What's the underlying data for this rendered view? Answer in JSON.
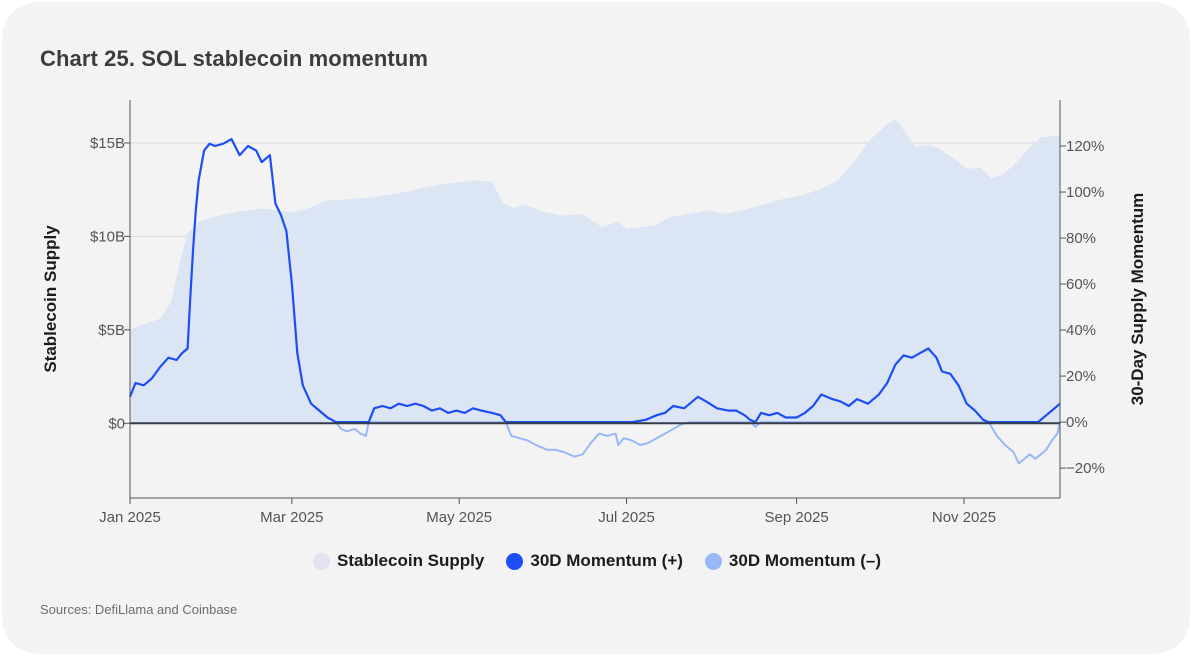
{
  "title": "Chart 25.  SOL stablecoin momentum",
  "source": "Sources: DefiLlama and Coinbase",
  "legend": {
    "supply": "Stablecoin Supply",
    "pos": "30D Momentum (+)",
    "neg": "30D Momentum (–)"
  },
  "colors": {
    "supply_fill": "#dce5f4",
    "supply_swatch": "#e3e3f3",
    "momentum_pos": "#1c4ef5",
    "momentum_neg": "#99b8f7",
    "zero_line": "#353b48"
  },
  "chart_data": {
    "type": "area",
    "title": "Chart 25.  SOL stablecoin momentum",
    "x_type": "date",
    "x_range": [
      "2025-01-01",
      "2025-12-06"
    ],
    "x_ticks": [
      {
        "date": "2025-01-01",
        "label": "Jan 2025"
      },
      {
        "date": "2025-03-01",
        "label": "Mar 2025"
      },
      {
        "date": "2025-05-01",
        "label": "May 2025"
      },
      {
        "date": "2025-07-01",
        "label": "Jul 2025"
      },
      {
        "date": "2025-09-01",
        "label": "Sep 2025"
      },
      {
        "date": "2025-11-01",
        "label": "Nov 2025"
      }
    ],
    "left_axis": {
      "label": "Stablecoin Supply",
      "range": [
        -4,
        17.3
      ],
      "ticks": [
        {
          "v": 0,
          "label": "$0"
        },
        {
          "v": 5,
          "label": "$5B"
        },
        {
          "v": 10,
          "label": "$10B"
        },
        {
          "v": 15,
          "label": "$15B"
        }
      ]
    },
    "right_axis": {
      "label": "30-Day Supply Momentum",
      "range": [
        -33,
        140
      ],
      "ticks": [
        {
          "v": -20,
          "label": "−20%"
        },
        {
          "v": 0,
          "label": "0%"
        },
        {
          "v": 20,
          "label": "20%"
        },
        {
          "v": 40,
          "label": "40%"
        },
        {
          "v": 60,
          "label": "60%"
        },
        {
          "v": 80,
          "label": "80%"
        },
        {
          "v": 100,
          "label": "100%"
        },
        {
          "v": 120,
          "label": "120%"
        }
      ]
    },
    "grid": "horizontal",
    "legend_position": "bottom",
    "series": [
      {
        "name": "Stablecoin Supply",
        "unit": "$B",
        "axis": "left",
        "points": [
          [
            "2025-01-01",
            5.0
          ],
          [
            "2025-01-06",
            5.3
          ],
          [
            "2025-01-12",
            5.6
          ],
          [
            "2025-01-16",
            6.5
          ],
          [
            "2025-01-19",
            8.5
          ],
          [
            "2025-01-22",
            10.2
          ],
          [
            "2025-01-26",
            10.8
          ],
          [
            "2025-02-02",
            11.1
          ],
          [
            "2025-02-09",
            11.3
          ],
          [
            "2025-02-18",
            11.5
          ],
          [
            "2025-03-01",
            11.3
          ],
          [
            "2025-03-07",
            11.5
          ],
          [
            "2025-03-13",
            11.9
          ],
          [
            "2025-03-22",
            12.0
          ],
          [
            "2025-03-31",
            12.1
          ],
          [
            "2025-04-09",
            12.3
          ],
          [
            "2025-04-18",
            12.6
          ],
          [
            "2025-04-25",
            12.8
          ],
          [
            "2025-05-01",
            12.9
          ],
          [
            "2025-05-08",
            13.0
          ],
          [
            "2025-05-13",
            12.9
          ],
          [
            "2025-05-17",
            11.8
          ],
          [
            "2025-05-21",
            11.5
          ],
          [
            "2025-05-25",
            11.7
          ],
          [
            "2025-06-01",
            11.3
          ],
          [
            "2025-06-08",
            11.1
          ],
          [
            "2025-06-15",
            11.2
          ],
          [
            "2025-06-22",
            10.5
          ],
          [
            "2025-06-28",
            10.8
          ],
          [
            "2025-07-01",
            10.4
          ],
          [
            "2025-07-06",
            10.5
          ],
          [
            "2025-07-12",
            10.6
          ],
          [
            "2025-07-16",
            11.0
          ],
          [
            "2025-07-23",
            11.2
          ],
          [
            "2025-07-31",
            11.4
          ],
          [
            "2025-08-06",
            11.2
          ],
          [
            "2025-08-12",
            11.4
          ],
          [
            "2025-08-20",
            11.7
          ],
          [
            "2025-08-27",
            12.0
          ],
          [
            "2025-09-03",
            12.2
          ],
          [
            "2025-09-09",
            12.5
          ],
          [
            "2025-09-16",
            13.0
          ],
          [
            "2025-09-22",
            14.0
          ],
          [
            "2025-09-28",
            15.2
          ],
          [
            "2025-10-04",
            16.0
          ],
          [
            "2025-10-07",
            16.3
          ],
          [
            "2025-10-11",
            15.5
          ],
          [
            "2025-10-14",
            14.8
          ],
          [
            "2025-10-19",
            14.9
          ],
          [
            "2025-10-23",
            14.7
          ],
          [
            "2025-10-28",
            14.2
          ],
          [
            "2025-11-02",
            13.6
          ],
          [
            "2025-11-07",
            13.7
          ],
          [
            "2025-11-11",
            13.1
          ],
          [
            "2025-11-15",
            13.3
          ],
          [
            "2025-11-19",
            13.8
          ],
          [
            "2025-11-24",
            14.6
          ],
          [
            "2025-11-29",
            15.3
          ],
          [
            "2025-12-06",
            15.4
          ]
        ]
      },
      {
        "name": "30D Momentum (+)",
        "unit": "%",
        "axis": "right",
        "points": [
          [
            "2025-01-01",
            11
          ],
          [
            "2025-01-03",
            17
          ],
          [
            "2025-01-06",
            16
          ],
          [
            "2025-01-09",
            19
          ],
          [
            "2025-01-12",
            24
          ],
          [
            "2025-01-15",
            28
          ],
          [
            "2025-01-18",
            27
          ],
          [
            "2025-01-20",
            30
          ],
          [
            "2025-01-22",
            32
          ],
          [
            "2025-01-23",
            55
          ],
          [
            "2025-01-24",
            75
          ],
          [
            "2025-01-25",
            92
          ],
          [
            "2025-01-26",
            105
          ],
          [
            "2025-01-28",
            118
          ],
          [
            "2025-01-30",
            121
          ],
          [
            "2025-02-01",
            120
          ],
          [
            "2025-02-04",
            121
          ],
          [
            "2025-02-07",
            123
          ],
          [
            "2025-02-10",
            116
          ],
          [
            "2025-02-13",
            120
          ],
          [
            "2025-02-16",
            118
          ],
          [
            "2025-02-18",
            113
          ],
          [
            "2025-02-21",
            116
          ],
          [
            "2025-02-23",
            95
          ],
          [
            "2025-02-25",
            90
          ],
          [
            "2025-02-27",
            83
          ],
          [
            "2025-03-01",
            60
          ],
          [
            "2025-03-03",
            30
          ],
          [
            "2025-03-05",
            16
          ],
          [
            "2025-03-08",
            8
          ],
          [
            "2025-03-11",
            5
          ],
          [
            "2025-03-14",
            2
          ],
          [
            "2025-03-17",
            0
          ],
          [
            "2025-03-29",
            0
          ],
          [
            "2025-03-31",
            6
          ],
          [
            "2025-04-03",
            7
          ],
          [
            "2025-04-06",
            6
          ],
          [
            "2025-04-09",
            8
          ],
          [
            "2025-04-12",
            7
          ],
          [
            "2025-04-15",
            8
          ],
          [
            "2025-04-18",
            7
          ],
          [
            "2025-04-21",
            5
          ],
          [
            "2025-04-24",
            6
          ],
          [
            "2025-04-27",
            4
          ],
          [
            "2025-04-30",
            5
          ],
          [
            "2025-05-03",
            4
          ],
          [
            "2025-05-06",
            6
          ],
          [
            "2025-05-09",
            5
          ],
          [
            "2025-05-13",
            4
          ],
          [
            "2025-05-16",
            3
          ],
          [
            "2025-05-18",
            0
          ],
          [
            "2025-06-28",
            0
          ],
          [
            "2025-07-03",
            0
          ],
          [
            "2025-07-08",
            1
          ],
          [
            "2025-07-12",
            3
          ],
          [
            "2025-07-15",
            4
          ],
          [
            "2025-07-18",
            7
          ],
          [
            "2025-07-22",
            6
          ],
          [
            "2025-07-27",
            11
          ],
          [
            "2025-07-30",
            9
          ],
          [
            "2025-08-03",
            6
          ],
          [
            "2025-08-07",
            5
          ],
          [
            "2025-08-10",
            5
          ],
          [
            "2025-08-13",
            3
          ],
          [
            "2025-08-15",
            1
          ],
          [
            "2025-08-17",
            0
          ],
          [
            "2025-08-19",
            4
          ],
          [
            "2025-08-22",
            3
          ],
          [
            "2025-08-25",
            4
          ],
          [
            "2025-08-28",
            2
          ],
          [
            "2025-09-01",
            2
          ],
          [
            "2025-09-04",
            4
          ],
          [
            "2025-09-07",
            7
          ],
          [
            "2025-09-10",
            12
          ],
          [
            "2025-09-14",
            10
          ],
          [
            "2025-09-17",
            9
          ],
          [
            "2025-09-20",
            7
          ],
          [
            "2025-09-23",
            10
          ],
          [
            "2025-09-27",
            8
          ],
          [
            "2025-10-01",
            12
          ],
          [
            "2025-10-04",
            17
          ],
          [
            "2025-10-07",
            25
          ],
          [
            "2025-10-10",
            29
          ],
          [
            "2025-10-13",
            28
          ],
          [
            "2025-10-16",
            30
          ],
          [
            "2025-10-19",
            32
          ],
          [
            "2025-10-22",
            28
          ],
          [
            "2025-10-24",
            22
          ],
          [
            "2025-10-27",
            21
          ],
          [
            "2025-10-30",
            16
          ],
          [
            "2025-11-02",
            8
          ],
          [
            "2025-11-05",
            5
          ],
          [
            "2025-11-08",
            1
          ],
          [
            "2025-11-10",
            0
          ],
          [
            "2025-11-28",
            0
          ],
          [
            "2025-12-01",
            3
          ],
          [
            "2025-12-03",
            5
          ],
          [
            "2025-12-06",
            8
          ]
        ]
      },
      {
        "name": "30D Momentum (–)",
        "unit": "%",
        "axis": "right",
        "points": [
          [
            "2025-03-17",
            0
          ],
          [
            "2025-03-19",
            -3
          ],
          [
            "2025-03-21",
            -4
          ],
          [
            "2025-03-24",
            -3
          ],
          [
            "2025-03-26",
            -5
          ],
          [
            "2025-03-28",
            -6
          ],
          [
            "2025-03-29",
            0
          ],
          [
            "2025-05-18",
            0
          ],
          [
            "2025-05-20",
            -6
          ],
          [
            "2025-05-23",
            -7
          ],
          [
            "2025-05-26",
            -8
          ],
          [
            "2025-05-29",
            -10
          ],
          [
            "2025-06-02",
            -12
          ],
          [
            "2025-06-05",
            -12
          ],
          [
            "2025-06-08",
            -13
          ],
          [
            "2025-06-12",
            -15
          ],
          [
            "2025-06-15",
            -14
          ],
          [
            "2025-06-18",
            -9
          ],
          [
            "2025-06-21",
            -5
          ],
          [
            "2025-06-24",
            -6
          ],
          [
            "2025-06-27",
            -5
          ],
          [
            "2025-06-28",
            -10
          ],
          [
            "2025-06-30",
            -7
          ],
          [
            "2025-07-03",
            -8
          ],
          [
            "2025-07-06",
            -10
          ],
          [
            "2025-07-09",
            -9
          ],
          [
            "2025-07-12",
            -7
          ],
          [
            "2025-07-15",
            -5
          ],
          [
            "2025-07-18",
            -3
          ],
          [
            "2025-07-21",
            -1
          ],
          [
            "2025-07-24",
            0
          ],
          [
            "2025-08-15",
            0
          ],
          [
            "2025-08-17",
            -2
          ],
          [
            "2025-08-19",
            0
          ],
          [
            "2025-11-10",
            0
          ],
          [
            "2025-11-13",
            -6
          ],
          [
            "2025-11-16",
            -10
          ],
          [
            "2025-11-19",
            -13
          ],
          [
            "2025-11-21",
            -18
          ],
          [
            "2025-11-23",
            -16
          ],
          [
            "2025-11-25",
            -14
          ],
          [
            "2025-11-27",
            -16
          ],
          [
            "2025-11-29",
            -14
          ],
          [
            "2025-12-01",
            -12
          ],
          [
            "2025-12-03",
            -8
          ],
          [
            "2025-12-05",
            -5
          ],
          [
            "2025-12-06",
            0
          ]
        ]
      }
    ]
  }
}
